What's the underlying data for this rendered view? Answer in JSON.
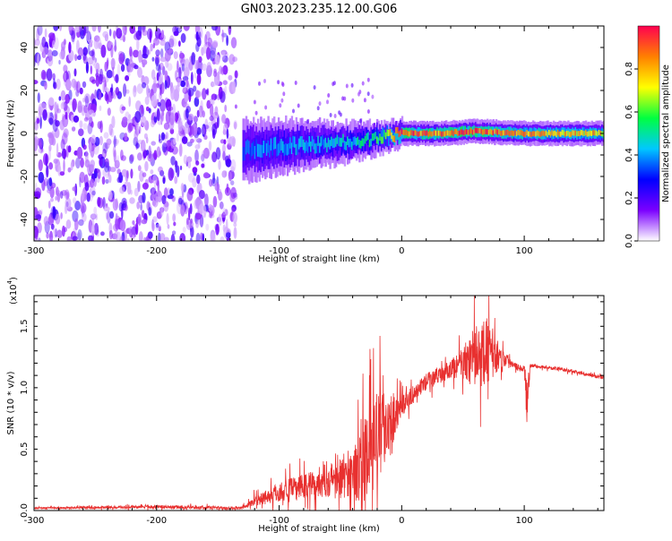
{
  "figure_title": "GN03.2023.235.12.00.G06",
  "chart_data": [
    {
      "type": "heatmap",
      "xlabel": "Height of straight line (km)",
      "ylabel": "Frequency (Hz)",
      "xlim": [
        -300,
        165
      ],
      "ylim": [
        -50,
        50
      ],
      "x_ticks": [
        -300,
        -200,
        -100,
        0,
        100
      ],
      "x_tick_labels": [
        "-300",
        "-200",
        "-100",
        "0",
        "100"
      ],
      "y_ticks": [
        -40,
        -20,
        0,
        20,
        40
      ],
      "y_tick_labels": [
        "-40",
        "-20",
        "0",
        "20",
        "40"
      ],
      "colorbar": {
        "label": "Normalized spectral amplitude",
        "range": [
          0,
          1
        ],
        "ticks": [
          0.0,
          0.2,
          0.4,
          0.6,
          0.8
        ],
        "tick_labels": [
          "0.0",
          "0.2",
          "0.4",
          "0.6",
          "0.8"
        ],
        "colormap": [
          "#ffffff",
          "#7b00ff",
          "#0000ff",
          "#00c8ff",
          "#00ff40",
          "#ffff00",
          "#ff8000",
          "#ff0050"
        ]
      },
      "noise_region_x": [
        -300,
        -135
      ],
      "ridge": [
        {
          "x": -130,
          "freq": -8,
          "amp": 0.35
        },
        {
          "x": -100,
          "freq": -6,
          "amp": 0.4
        },
        {
          "x": -70,
          "freq": -5,
          "amp": 0.42
        },
        {
          "x": -40,
          "freq": -4,
          "amp": 0.45
        },
        {
          "x": -20,
          "freq": -2,
          "amp": 0.55
        },
        {
          "x": 0,
          "freq": 0,
          "amp": 0.9
        },
        {
          "x": 30,
          "freq": 0,
          "amp": 0.85
        },
        {
          "x": 60,
          "freq": 1,
          "amp": 0.95
        },
        {
          "x": 100,
          "freq": 0,
          "amp": 0.8
        },
        {
          "x": 165,
          "freq": 0,
          "amp": 0.75
        }
      ]
    },
    {
      "type": "line",
      "xlabel": "Height of straight line (km)",
      "ylabel": "SNR (10 * v/v)",
      "y_multiplier_label": "(x10",
      "y_multiplier_exp": "4",
      "y_multiplier_close": ")",
      "xlim": [
        -300,
        165
      ],
      "ylim": [
        0,
        1.75
      ],
      "x_ticks": [
        -300,
        -200,
        -100,
        0,
        100
      ],
      "x_tick_labels": [
        "-300",
        "-200",
        "-100",
        "0",
        "100"
      ],
      "y_ticks": [
        0.0,
        0.5,
        1.0,
        1.5
      ],
      "y_tick_labels": [
        "0.0",
        "0.5",
        "1.0",
        "1.5"
      ],
      "color": "#e8302f",
      "series": [
        {
          "name": "SNR",
          "x": [
            -300,
            -200,
            -130,
            -120,
            -100,
            -80,
            -60,
            -40,
            -30,
            -20,
            -10,
            0,
            10,
            20,
            40,
            50,
            60,
            70,
            80,
            90,
            100,
            102,
            105,
            130,
            165
          ],
          "y": [
            0.02,
            0.03,
            0.02,
            0.08,
            0.15,
            0.2,
            0.25,
            0.3,
            0.4,
            0.6,
            0.75,
            0.85,
            0.95,
            1.05,
            1.15,
            1.2,
            1.25,
            1.3,
            1.25,
            1.2,
            1.15,
            0.9,
            1.18,
            1.15,
            1.08
          ],
          "noise_band": [
            0.01,
            0.02,
            0.02,
            0.06,
            0.12,
            0.15,
            0.2,
            0.3,
            0.5,
            0.55,
            0.35,
            0.12,
            0.1,
            0.1,
            0.1,
            0.2,
            0.35,
            0.4,
            0.15,
            0.05,
            0.04,
            0.3,
            0.02,
            0.02,
            0.02
          ]
        }
      ]
    }
  ]
}
